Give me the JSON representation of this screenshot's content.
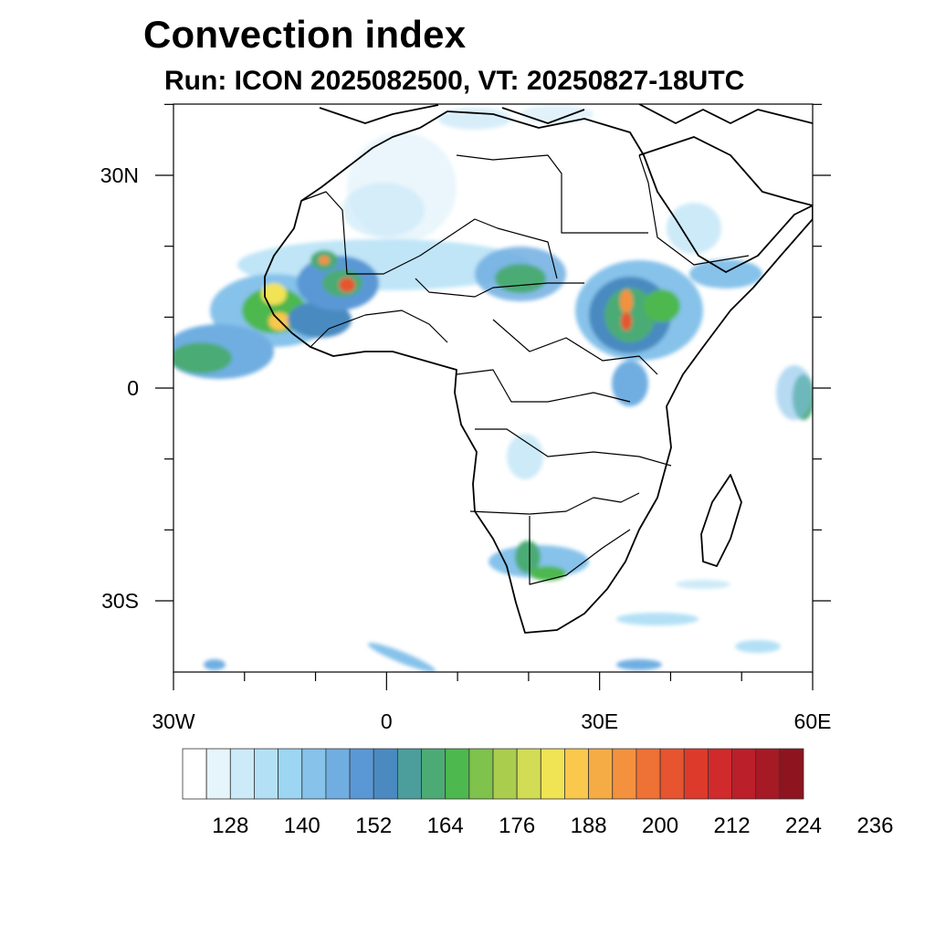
{
  "title": "Convection index",
  "subtitle": "Run: ICON 2025082500,  VT: 20250827-18UTC",
  "map": {
    "region": "Africa",
    "lon_range": [
      -30,
      60
    ],
    "lat_range": [
      -40,
      40
    ],
    "lat_ticks": [
      {
        "value": 30,
        "label": "30N"
      },
      {
        "value": 0,
        "label": "0"
      },
      {
        "value": -30,
        "label": "30S"
      }
    ],
    "lon_ticks": [
      {
        "value": -30,
        "label": "30W"
      },
      {
        "value": 0,
        "label": "0"
      },
      {
        "value": 30,
        "label": "30E"
      },
      {
        "value": 60,
        "label": "60E"
      }
    ]
  },
  "colorbar": {
    "colors": [
      "#ffffff",
      "#e6f4fb",
      "#cdeaf8",
      "#b4e0f6",
      "#9cd6f3",
      "#86c2ea",
      "#70aee2",
      "#5a98d5",
      "#4a8ac0",
      "#4b9e9c",
      "#4cab75",
      "#4db84e",
      "#7fc24c",
      "#aacd4e",
      "#d2dc54",
      "#f0e354",
      "#f9c84d",
      "#f6ac45",
      "#f4913e",
      "#ee7136",
      "#e6552f",
      "#de3a2c",
      "#d02a2c",
      "#bb1f29",
      "#a51a25",
      "#8e1520"
    ],
    "tick_labels": [
      "128",
      "140",
      "152",
      "164",
      "176",
      "188",
      "200",
      "212",
      "224",
      "236"
    ]
  }
}
